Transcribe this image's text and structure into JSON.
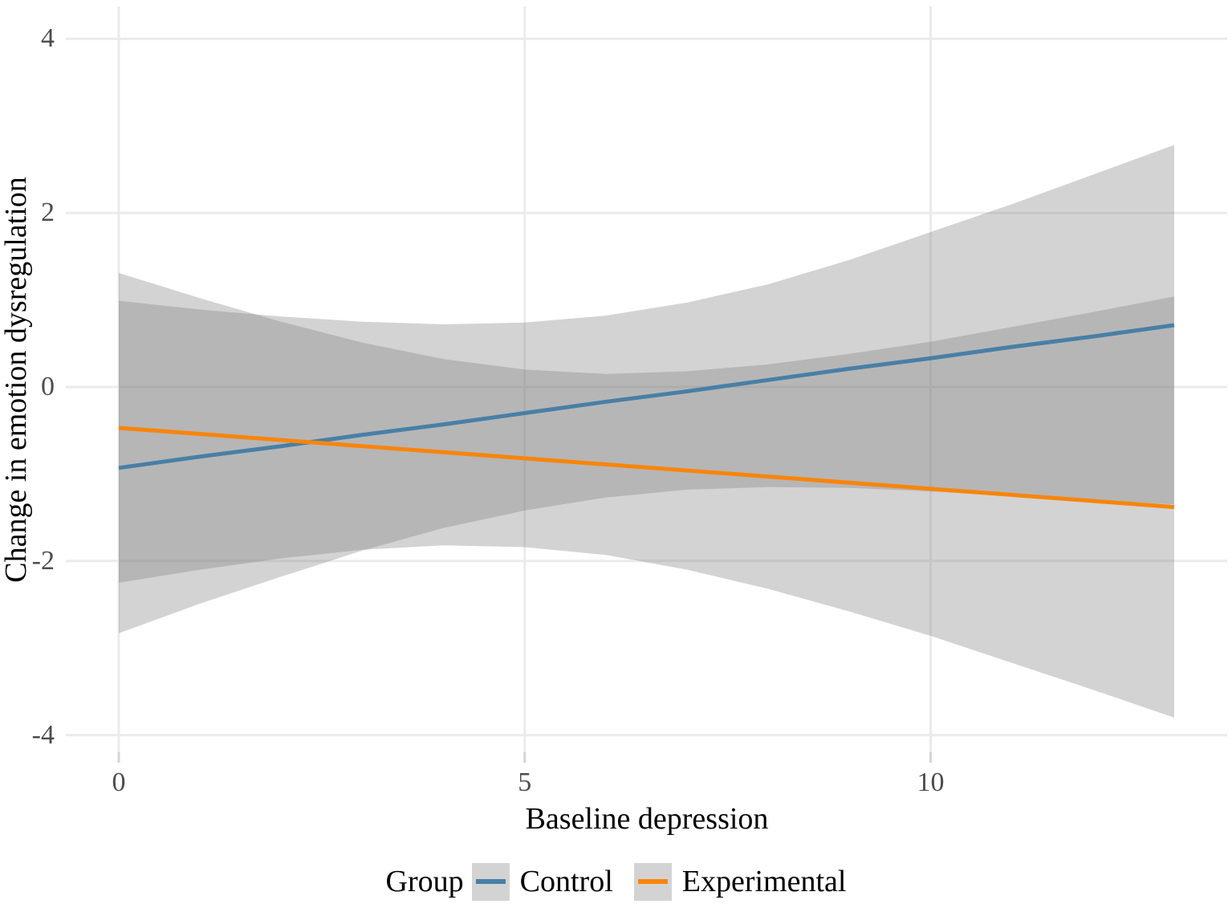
{
  "figure": {
    "background": "#FFFFFF"
  },
  "chart_data": {
    "type": "line",
    "subtype": "regression-fit-with-confidence-ribbons",
    "title": "",
    "xlabel": "Baseline depression",
    "ylabel": "Change in emotion dysregulation",
    "legend_title": "Group",
    "legend_position": "bottom",
    "grid": "major-only",
    "x_ticks": [
      0,
      5,
      10
    ],
    "y_ticks": [
      4,
      2,
      0,
      -2,
      -4
    ],
    "xlim": [
      -0.65,
      13.7
    ],
    "ylim": [
      -4.28,
      4.37
    ],
    "x": [
      0,
      1,
      2,
      3,
      4,
      5,
      6,
      7,
      8,
      9,
      10,
      11,
      12,
      13
    ],
    "series": [
      {
        "name": "Control",
        "color": "#497FA6",
        "fit": [
          -0.93,
          -0.8,
          -0.68,
          -0.55,
          -0.43,
          -0.3,
          -0.17,
          -0.05,
          0.08,
          0.21,
          0.33,
          0.46,
          0.58,
          0.71
        ],
        "ci_upper": [
          0.99,
          0.89,
          0.81,
          0.75,
          0.72,
          0.74,
          0.82,
          0.97,
          1.18,
          1.46,
          1.78,
          2.1,
          2.44,
          2.78
        ],
        "ci_lower": [
          -2.83,
          -2.49,
          -2.18,
          -1.88,
          -1.62,
          -1.42,
          -1.27,
          -1.18,
          -1.15,
          -1.16,
          -1.2,
          -1.25,
          -1.3,
          -1.35
        ]
      },
      {
        "name": "Experimental",
        "color": "#F8850A",
        "fit": [
          -0.47,
          -0.54,
          -0.61,
          -0.68,
          -0.75,
          -0.82,
          -0.89,
          -0.96,
          -1.03,
          -1.1,
          -1.17,
          -1.24,
          -1.31,
          -1.38
        ],
        "ci_upper": [
          1.31,
          1.02,
          0.75,
          0.51,
          0.32,
          0.2,
          0.15,
          0.18,
          0.26,
          0.38,
          0.52,
          0.69,
          0.86,
          1.04
        ],
        "ci_lower": [
          -2.25,
          -2.1,
          -1.97,
          -1.87,
          -1.82,
          -1.84,
          -1.93,
          -2.1,
          -2.32,
          -2.58,
          -2.86,
          -3.17,
          -3.48,
          -3.8
        ]
      }
    ],
    "colors": {
      "ribbon_fill": "#7F7F7F",
      "gridline": "#EBEBEB",
      "tick_mark": "#D4D4D4",
      "tick_label": "#4D4D4D",
      "axis_title": "#000000"
    },
    "ribbon_opacity": 0.34
  }
}
